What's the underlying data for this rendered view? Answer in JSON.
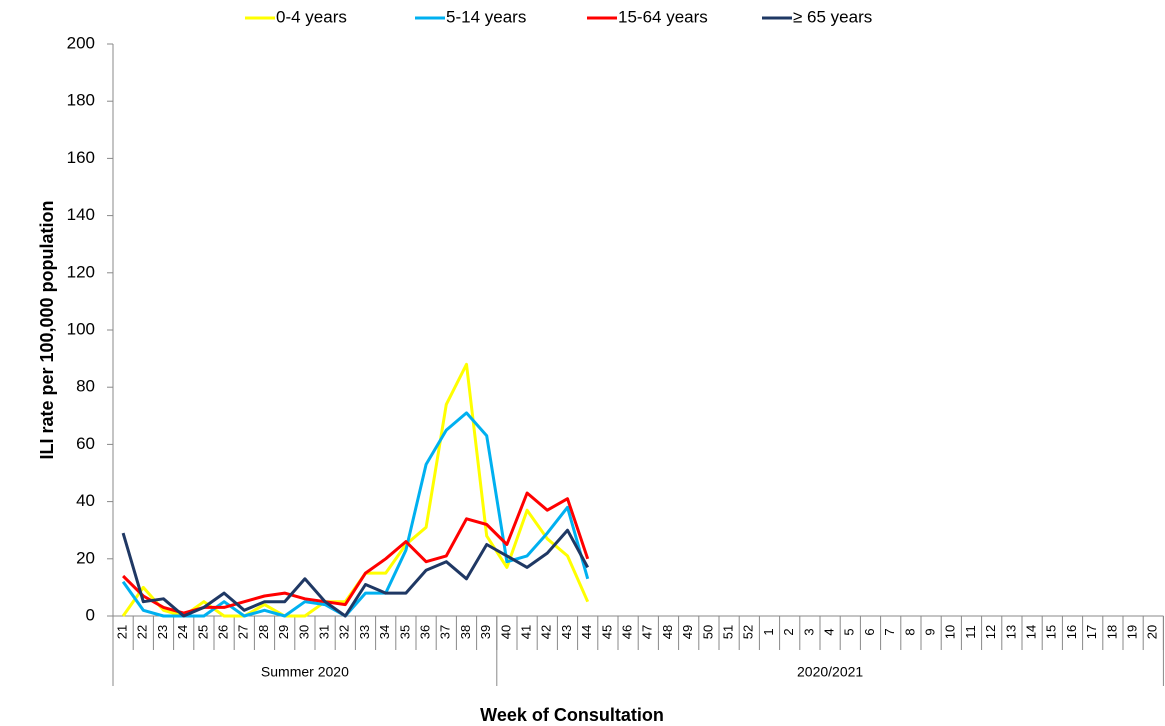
{
  "chart_data": {
    "type": "line",
    "x_label": "Week of Consultation",
    "y_label": "ILI rate per 100,000 population",
    "categories": [
      21,
      22,
      23,
      24,
      25,
      26,
      27,
      28,
      29,
      30,
      31,
      32,
      33,
      34,
      35,
      36,
      37,
      38,
      39,
      40,
      41,
      42,
      43,
      44,
      45,
      46,
      47,
      48,
      49,
      50,
      51,
      52,
      1,
      2,
      3,
      4,
      5,
      6,
      7,
      8,
      9,
      10,
      11,
      12,
      13,
      14,
      15,
      16,
      17,
      18,
      19,
      20
    ],
    "groups": [
      {
        "label": "Summer 2020",
        "count": 19
      },
      {
        "label": "2020/2021",
        "count": 33
      }
    ],
    "series": [
      {
        "name": "0-4 years",
        "color": "#ffff00",
        "values": [
          0,
          10,
          2,
          0,
          5,
          0,
          0,
          4,
          0,
          0,
          5,
          5,
          15,
          15,
          25,
          31,
          74,
          88,
          28,
          17,
          37,
          27,
          21,
          5,
          null,
          null,
          null,
          null,
          null,
          null,
          null,
          null,
          null,
          null,
          null,
          null,
          null,
          null,
          null,
          null,
          null,
          null,
          null,
          null,
          null,
          null,
          null,
          null,
          null,
          null,
          null,
          null
        ]
      },
      {
        "name": "5-14 years",
        "color": "#00b0f0",
        "values": [
          12,
          2,
          0,
          0,
          0,
          5,
          0,
          2,
          0,
          5,
          4,
          0,
          8,
          8,
          23,
          53,
          65,
          71,
          63,
          19,
          21,
          29,
          38,
          13,
          null,
          null,
          null,
          null,
          null,
          null,
          null,
          null,
          null,
          null,
          null,
          null,
          null,
          null,
          null,
          null,
          null,
          null,
          null,
          null,
          null,
          null,
          null,
          null,
          null,
          null,
          null,
          null
        ]
      },
      {
        "name": "15-64 years",
        "color": "#ff0000",
        "values": [
          14,
          7,
          3,
          1,
          3,
          3,
          5,
          7,
          8,
          6,
          5,
          4,
          15,
          20,
          26,
          19,
          21,
          34,
          32,
          25,
          43,
          37,
          41,
          20,
          null,
          null,
          null,
          null,
          null,
          null,
          null,
          null,
          null,
          null,
          null,
          null,
          null,
          null,
          null,
          null,
          null,
          null,
          null,
          null,
          null,
          null,
          null,
          null,
          null,
          null,
          null,
          null
        ]
      },
      {
        "name": "≥ 65 years",
        "color": "#1f3864",
        "values": [
          29,
          5,
          6,
          0,
          3,
          8,
          2,
          5,
          5,
          13,
          5,
          0,
          11,
          8,
          8,
          16,
          19,
          13,
          25,
          21,
          17,
          22,
          30,
          17,
          null,
          null,
          null,
          null,
          null,
          null,
          null,
          null,
          null,
          null,
          null,
          null,
          null,
          null,
          null,
          null,
          null,
          null,
          null,
          null,
          null,
          null,
          null,
          null,
          null,
          null,
          null,
          null
        ]
      }
    ],
    "ylim": [
      0,
      200
    ],
    "yticks": [
      0,
      20,
      40,
      60,
      80,
      100,
      120,
      140,
      160,
      180,
      200
    ],
    "grid": false,
    "legend": "top"
  }
}
